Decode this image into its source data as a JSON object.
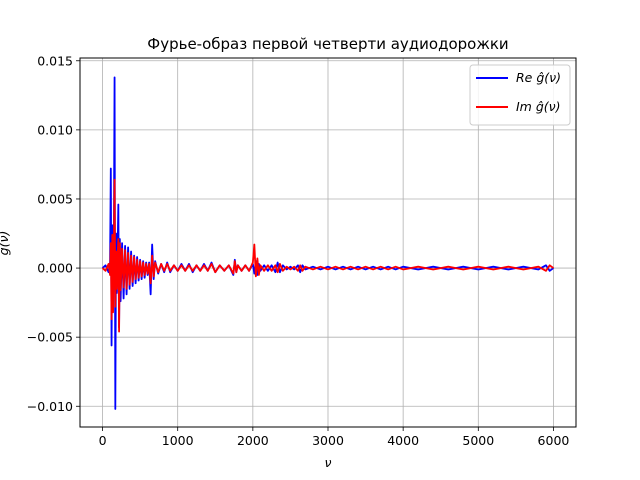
{
  "chart_data": {
    "type": "line",
    "title": "Фурье-образ первой четверти аудиодорожки",
    "xlabel": "ν",
    "ylabel": "g(ν)",
    "xlim": [
      -300,
      6300
    ],
    "ylim": [
      -0.0115,
      0.0152
    ],
    "xticks": [
      0,
      1000,
      2000,
      3000,
      4000,
      5000,
      6000
    ],
    "xtick_labels": [
      "0",
      "1000",
      "2000",
      "3000",
      "4000",
      "5000",
      "6000"
    ],
    "yticks": [
      -0.01,
      -0.005,
      0.0,
      0.005,
      0.01,
      0.015
    ],
    "ytick_labels": [
      "−0.010",
      "−0.005",
      "0.000",
      "0.005",
      "0.010",
      "0.015"
    ],
    "grid": true,
    "legend_position": "top-right",
    "series": [
      {
        "name": "Re ĝ(ν)",
        "color": "#0000ff",
        "x": [
          0,
          40,
          80,
          100,
          110,
          120,
          130,
          140,
          150,
          160,
          170,
          180,
          190,
          200,
          210,
          220,
          230,
          240,
          260,
          280,
          300,
          320,
          340,
          360,
          380,
          400,
          420,
          440,
          460,
          480,
          500,
          520,
          540,
          560,
          580,
          600,
          620,
          640,
          660,
          680,
          700,
          740,
          780,
          820,
          860,
          900,
          950,
          1000,
          1050,
          1100,
          1150,
          1200,
          1250,
          1300,
          1350,
          1400,
          1450,
          1500,
          1560,
          1620,
          1680,
          1740,
          1760,
          1780,
          1800,
          1850,
          1900,
          1950,
          2000,
          2020,
          2040,
          2060,
          2080,
          2100,
          2150,
          2200,
          2250,
          2300,
          2330,
          2360,
          2400,
          2450,
          2500,
          2550,
          2600,
          2630,
          2660,
          2700,
          2800,
          2900,
          3000,
          3100,
          3200,
          3300,
          3400,
          3500,
          3600,
          3700,
          3800,
          3900,
          4000,
          4200,
          4400,
          4600,
          4800,
          5000,
          5200,
          5400,
          5600,
          5800,
          5900,
          5950,
          6000
        ],
        "values": [
          0.0,
          0.0002,
          -0.0003,
          0.0004,
          0.0072,
          -0.0056,
          0.0031,
          -0.002,
          0.0014,
          0.0138,
          -0.0102,
          0.0025,
          -0.0018,
          0.0012,
          0.0046,
          -0.0043,
          0.0021,
          -0.0024,
          0.0018,
          -0.0022,
          0.0016,
          -0.0019,
          0.0015,
          -0.0015,
          0.0012,
          -0.0013,
          0.0009,
          -0.0011,
          0.0008,
          -0.0009,
          0.0006,
          -0.0008,
          0.0005,
          -0.0007,
          0.0004,
          -0.0005,
          0.0004,
          -0.0019,
          0.0017,
          -0.0008,
          0.0005,
          -0.0004,
          0.0003,
          -0.0003,
          0.0004,
          -0.0003,
          0.0002,
          -0.0002,
          0.0003,
          -0.0002,
          0.0003,
          -0.0003,
          0.0002,
          -0.0002,
          0.0003,
          -0.0002,
          0.0004,
          -0.0003,
          0.0002,
          -0.0002,
          0.0002,
          -0.0005,
          0.0006,
          -0.0003,
          0.0002,
          -0.0002,
          0.0002,
          -0.0002,
          0.0003,
          -0.0004,
          0.0005,
          -0.0005,
          0.0003,
          -0.0002,
          0.0002,
          -0.0002,
          0.0002,
          -0.0003,
          0.0004,
          -0.0003,
          0.0002,
          -0.0001,
          0.0001,
          -0.0001,
          0.0002,
          -0.0003,
          0.0002,
          -0.0001,
          0.0001,
          -0.0001,
          0.0001,
          -0.0001,
          0.0001,
          -0.0001,
          0.0001,
          -0.0001,
          0.0001,
          -0.0001,
          0.0001,
          -0.0001,
          0.0001,
          -0.0001,
          0.0001,
          -0.0001,
          0.0001,
          -0.0001,
          0.0001,
          -0.0001,
          0.0001,
          -0.0001,
          0.0002,
          -0.0002,
          0.0
        ]
      },
      {
        "name": "Im ĝ(ν)",
        "color": "#ff0000",
        "x": [
          0,
          40,
          80,
          100,
          110,
          120,
          130,
          140,
          150,
          160,
          170,
          180,
          190,
          200,
          210,
          220,
          230,
          240,
          260,
          280,
          300,
          320,
          340,
          360,
          380,
          400,
          420,
          440,
          460,
          480,
          500,
          520,
          540,
          560,
          580,
          600,
          620,
          640,
          660,
          680,
          700,
          740,
          780,
          820,
          860,
          900,
          950,
          1000,
          1050,
          1100,
          1150,
          1200,
          1250,
          1300,
          1350,
          1400,
          1450,
          1500,
          1560,
          1620,
          1680,
          1740,
          1760,
          1780,
          1800,
          1850,
          1900,
          1950,
          2000,
          2020,
          2040,
          2060,
          2080,
          2100,
          2150,
          2200,
          2250,
          2300,
          2330,
          2360,
          2400,
          2450,
          2500,
          2550,
          2600,
          2630,
          2660,
          2700,
          2800,
          2900,
          3000,
          3100,
          3200,
          3300,
          3400,
          3500,
          3600,
          3700,
          3800,
          3900,
          4000,
          4200,
          4400,
          4600,
          4800,
          5000,
          5200,
          5400,
          5600,
          5800,
          5900,
          5950,
          6000
        ],
        "values": [
          0.0,
          -0.0002,
          0.0003,
          -0.0005,
          0.0018,
          -0.0037,
          0.0024,
          -0.0032,
          0.0011,
          0.0064,
          -0.0028,
          0.0012,
          -0.0015,
          0.0009,
          0.0021,
          -0.0046,
          0.0018,
          -0.0016,
          0.0014,
          -0.0014,
          0.0013,
          -0.0015,
          0.0011,
          -0.0012,
          0.0009,
          -0.001,
          0.0008,
          -0.0008,
          0.0006,
          -0.0007,
          0.0005,
          -0.0006,
          0.0004,
          -0.0005,
          0.0003,
          -0.0004,
          0.0003,
          -0.0011,
          0.0009,
          -0.0006,
          0.0004,
          -0.0003,
          0.0003,
          -0.0002,
          0.0003,
          -0.0002,
          0.0002,
          -0.0002,
          0.0002,
          -0.0002,
          0.0002,
          -0.0002,
          0.0002,
          -0.0002,
          0.0002,
          -0.0002,
          0.0003,
          -0.0003,
          0.0002,
          -0.0002,
          0.0002,
          -0.0004,
          0.0005,
          -0.0003,
          0.0002,
          -0.0002,
          0.0002,
          -0.0002,
          0.0004,
          0.0017,
          -0.0006,
          0.0007,
          -0.0005,
          0.0002,
          -0.0002,
          0.0002,
          -0.0002,
          0.0002,
          -0.0003,
          0.0003,
          -0.0002,
          0.0001,
          -0.0001,
          0.0001,
          -0.0002,
          0.0002,
          -0.0002,
          0.0001,
          -0.0001,
          0.0001,
          -0.0001,
          0.0001,
          -0.0001,
          0.0001,
          -0.0001,
          0.0001,
          -0.0001,
          0.0001,
          -0.0001,
          0.0001,
          -0.0001,
          0.0001,
          -0.0001,
          0.0001,
          -0.0001,
          0.0001,
          -0.0001,
          0.0001,
          -0.0001,
          0.0001,
          -0.0002,
          0.0002,
          0.0
        ]
      }
    ]
  }
}
